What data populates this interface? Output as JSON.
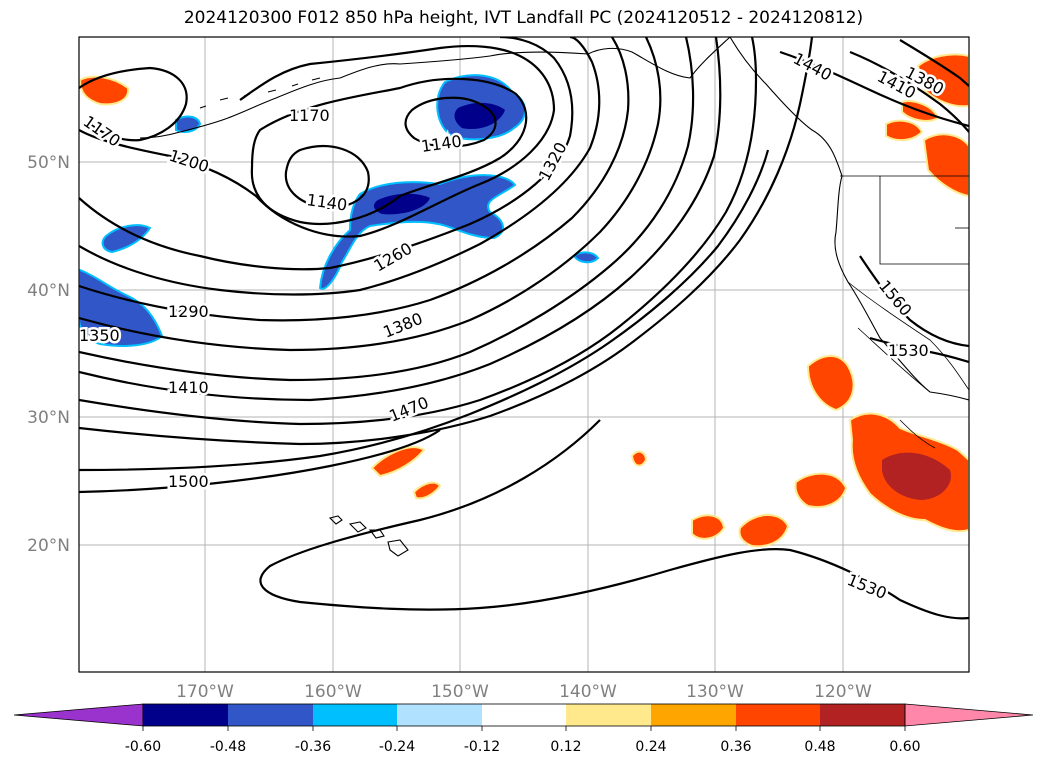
{
  "title": "2024120300 F012 850 hPa height, IVT Landfall PC (2024120512 - 2024120812)",
  "axes": {
    "lat_labels": [
      "50°N",
      "40°N",
      "30°N",
      "20°N"
    ],
    "lon_labels": [
      "170°W",
      "160°W",
      "150°W",
      "140°W",
      "130°W",
      "120°W"
    ]
  },
  "contour_labels": [
    "1200",
    "1170",
    "1170",
    "1140",
    "1140",
    "1260",
    "1290",
    "1320",
    "1350",
    "1380",
    "1410",
    "1470",
    "1500",
    "1440",
    "1410",
    "1380",
    "1560",
    "1530",
    "1530"
  ],
  "colorbar": {
    "ticks": [
      "-0.60",
      "-0.48",
      "-0.36",
      "-0.24",
      "-0.12",
      "0.12",
      "0.24",
      "0.36",
      "0.48",
      "0.60"
    ],
    "colors": [
      "#9a32cd",
      "#00008b",
      "#3056c8",
      "#00bfff",
      "#b0e2ff",
      "#ffffff",
      "#ffe98c",
      "#ffa500",
      "#ff4500",
      "#b22222",
      "#ff88aa"
    ]
  },
  "palette": {
    "neg_strong": "#00008b",
    "neg_mid": "#3056c8",
    "neg_light": "#00bfff",
    "pos_light": "#ffa500",
    "pos_mid": "#ff4500",
    "pos_strong": "#b22222",
    "edge_yellow": "#ffe98c"
  }
}
